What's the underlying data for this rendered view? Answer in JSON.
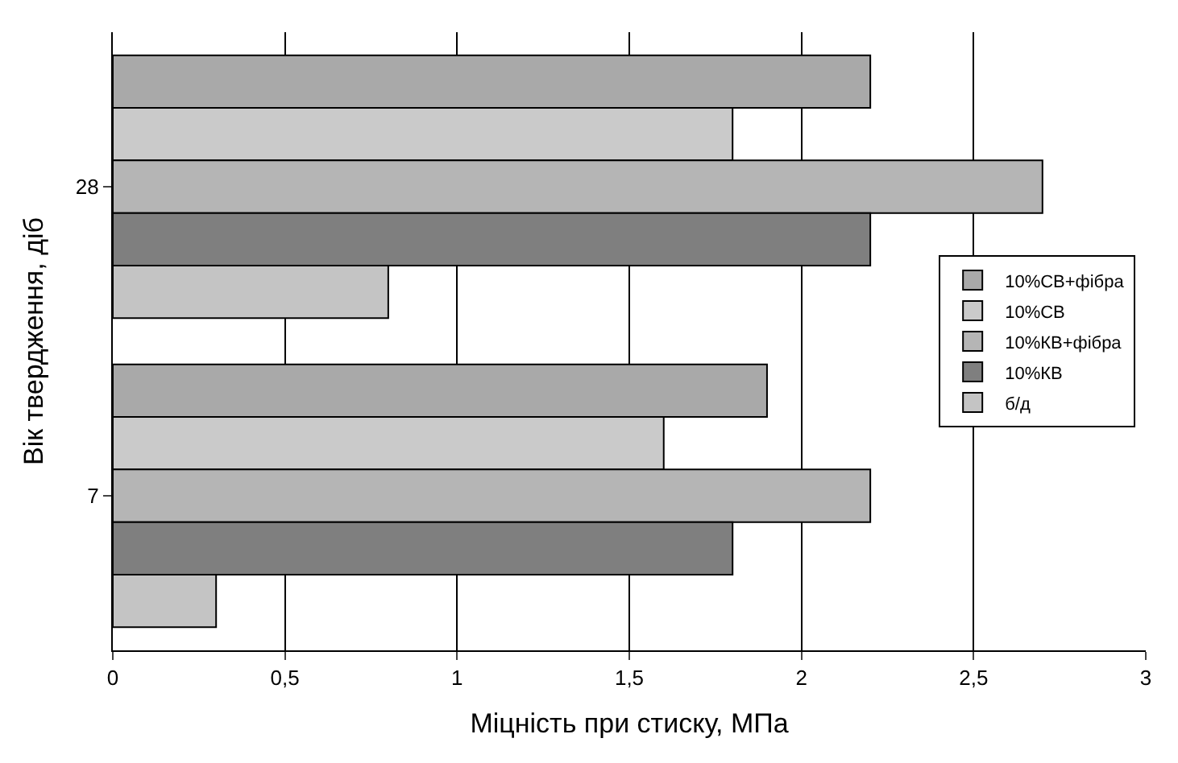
{
  "chart_data": {
    "type": "bar",
    "orientation": "horizontal",
    "xlabel": "Міцність при стиску, МПа",
    "ylabel": "Вік твердження, діб",
    "categories": [
      "28",
      "7"
    ],
    "series": [
      {
        "name": "10%СВ+фібра",
        "color": "#a9a9a9",
        "values": [
          2.2,
          1.9
        ]
      },
      {
        "name": "10%СВ",
        "color": "#cacaca",
        "values": [
          1.8,
          1.6
        ]
      },
      {
        "name": "10%КВ+фібра",
        "color": "#b5b5b5",
        "values": [
          2.7,
          2.2
        ]
      },
      {
        "name": "10%КВ",
        "color": "#7f7f7f",
        "values": [
          2.2,
          1.8
        ]
      },
      {
        "name": "б/д",
        "color": "#c4c4c4",
        "values": [
          0.8,
          0.3
        ]
      }
    ],
    "xlim": [
      0,
      3
    ],
    "xticks": [
      0,
      {
        "value": 0.5,
        "label": "0,5"
      },
      1,
      {
        "value": 1.5,
        "label": "1,5"
      },
      2,
      {
        "value": 2.5,
        "label": "2,5"
      },
      3
    ],
    "grid": "x",
    "legend": "right"
  }
}
